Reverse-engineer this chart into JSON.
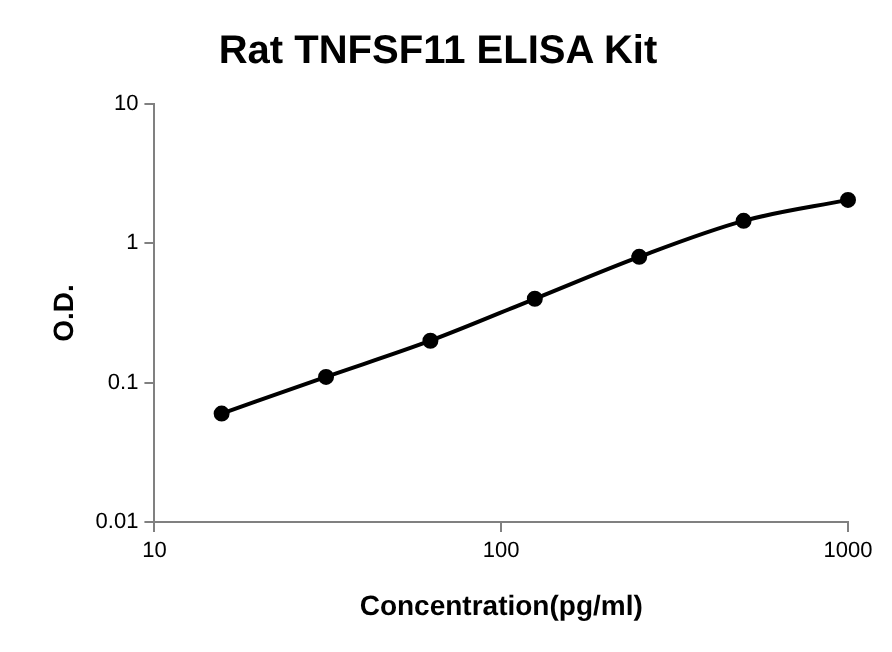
{
  "chart_data": {
    "type": "line",
    "title": "Rat TNFSF11 ELISA Kit",
    "xlabel": "Concentration(pg/ml)",
    "ylabel": "O.D.",
    "x": [
      15.625,
      31.25,
      62.5,
      125,
      250,
      500,
      1000
    ],
    "series": [
      {
        "color": "#000000",
        "values": [
          0.06,
          0.11,
          0.2,
          0.4,
          0.8,
          1.45,
          2.05
        ]
      }
    ],
    "xlim": [
      10,
      1000
    ],
    "xticks": [
      10,
      100,
      1000
    ],
    "ylim": [
      0.01,
      10
    ],
    "yticks": [
      0.01,
      0.1,
      1,
      10
    ],
    "log": "xy",
    "grid": false,
    "legend": false,
    "marker": "circle",
    "line_style": "solid"
  }
}
